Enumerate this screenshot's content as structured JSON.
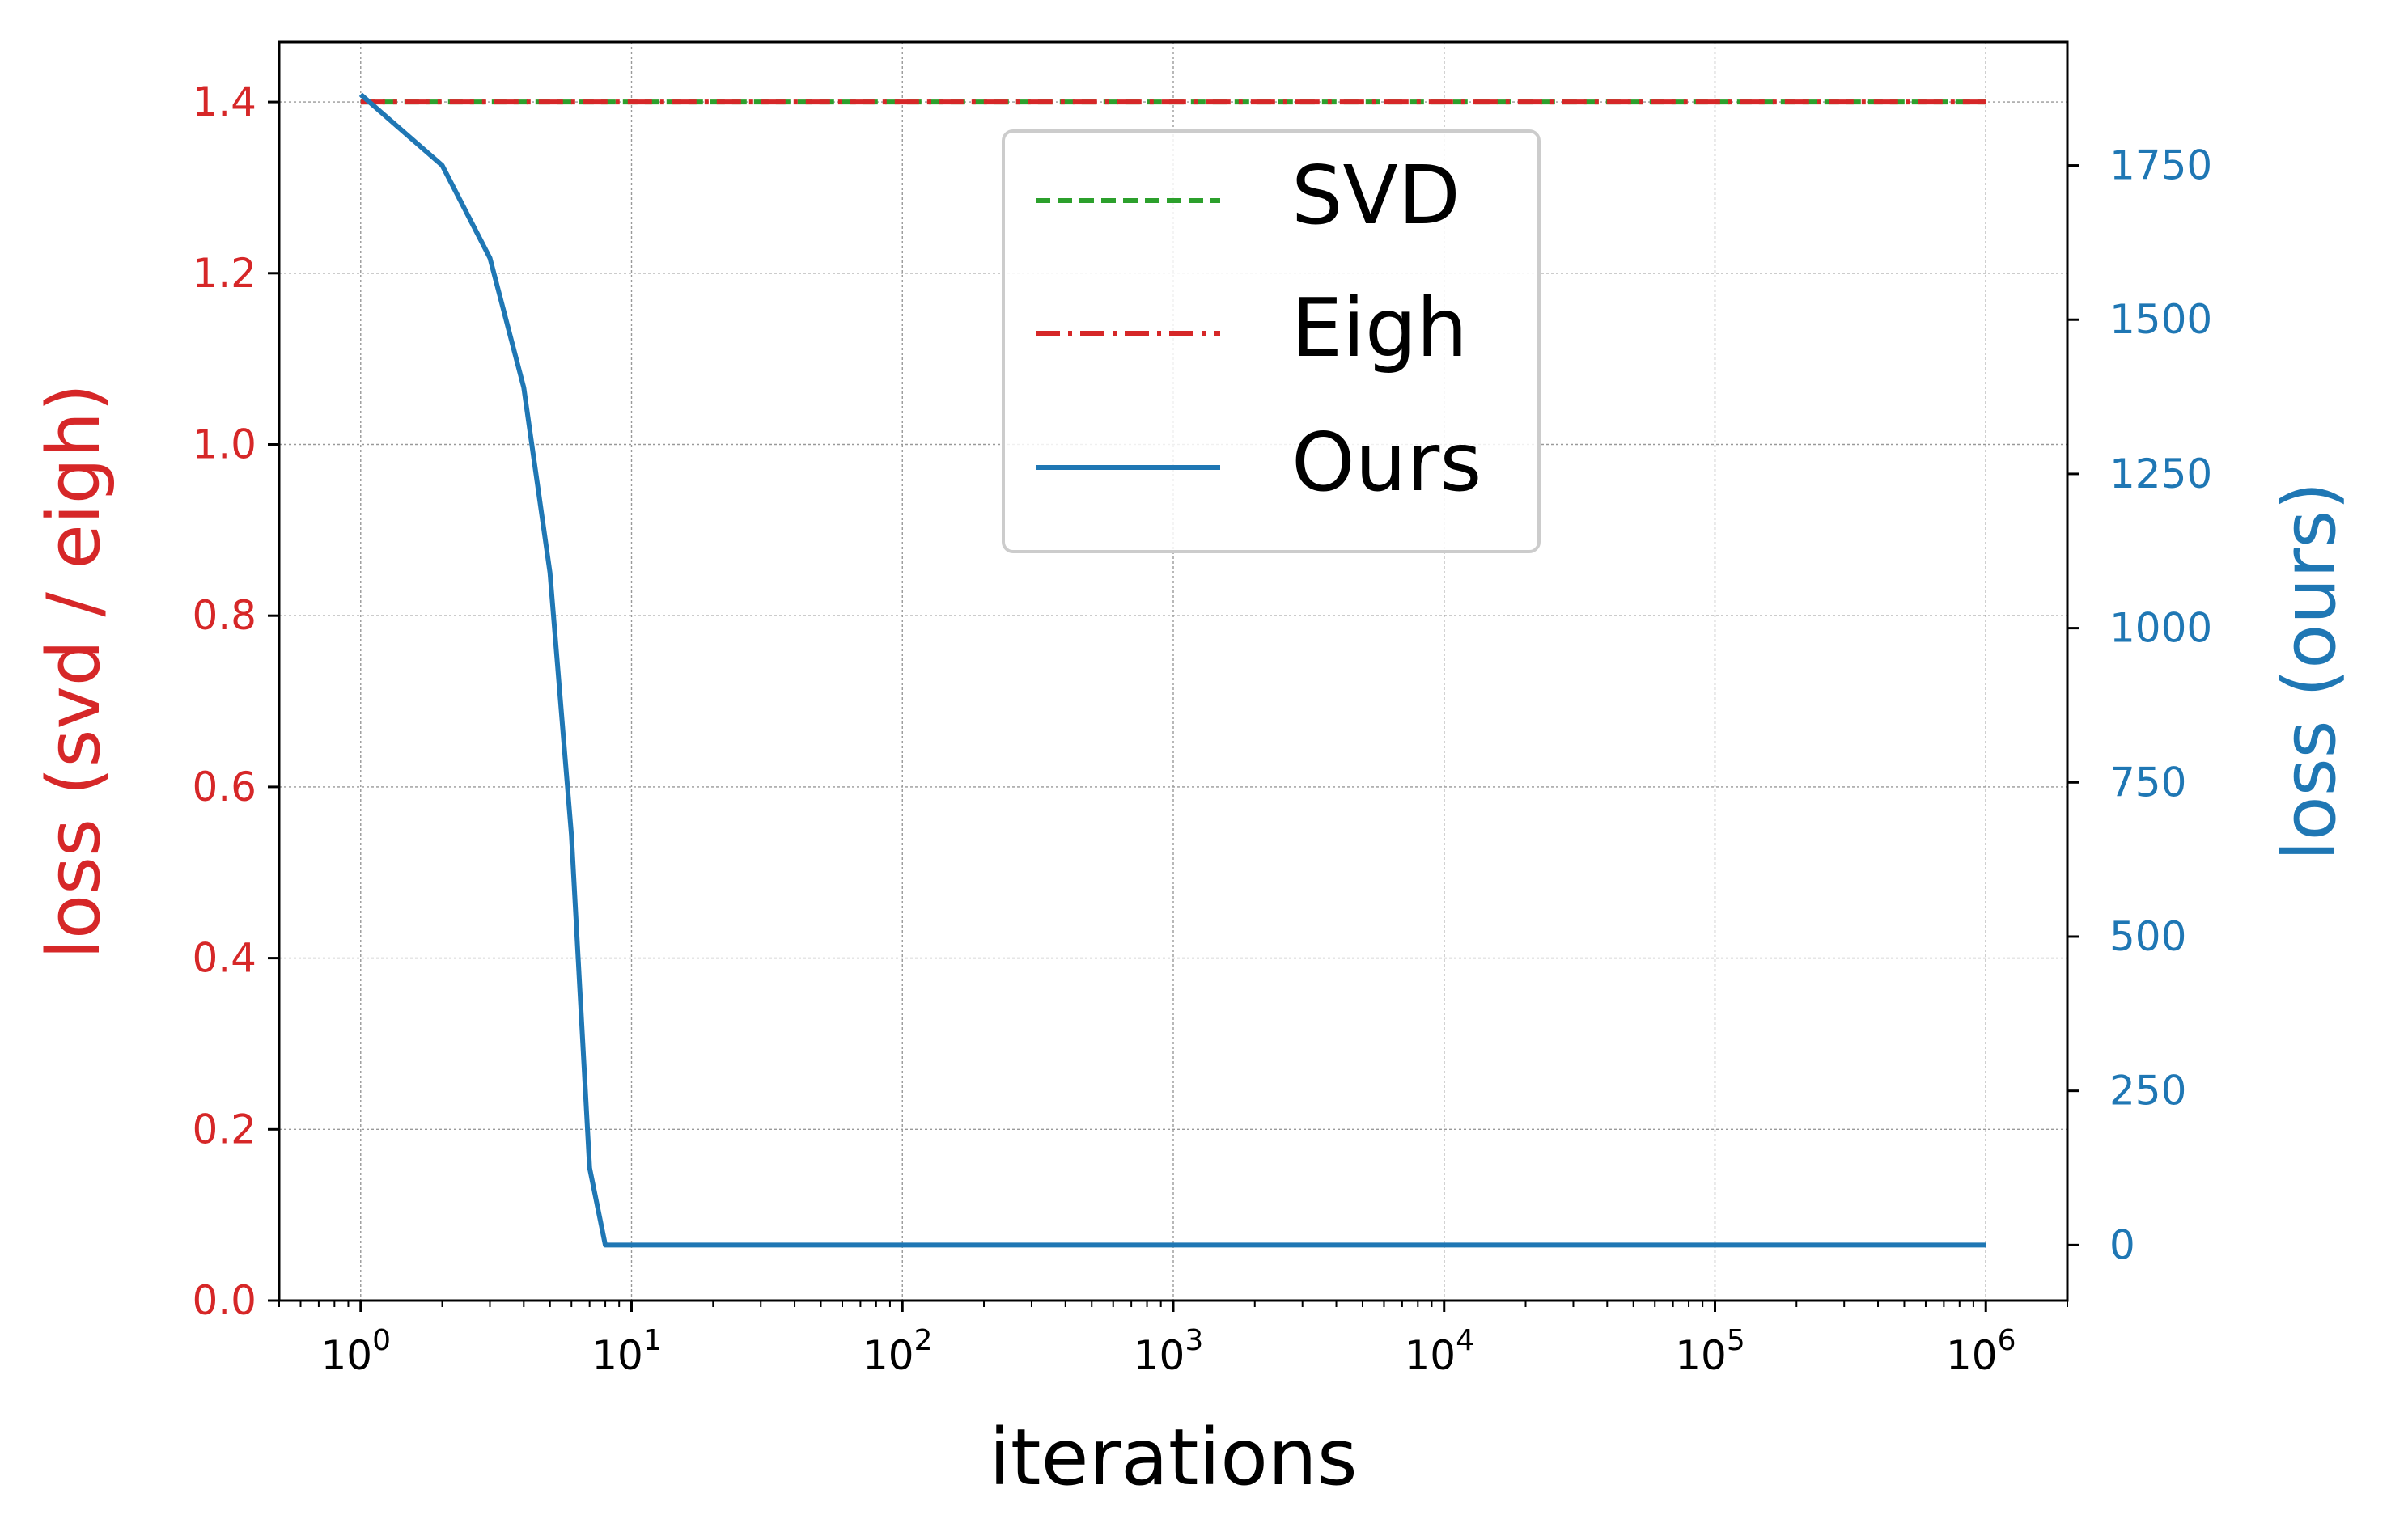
{
  "chart_data": {
    "type": "line",
    "title": "",
    "xlabel": "iterations",
    "ylabel_left": "loss (svd / eigh)",
    "ylabel_right": "loss (ours)",
    "x_scale": "log",
    "xlim": [
      0.5,
      2000000
    ],
    "ylim_left": [
      0.0,
      1.47
    ],
    "ylim_right": [
      -90,
      1950
    ],
    "x_ticks": [
      {
        "value": 1,
        "base": "10",
        "exp": "0"
      },
      {
        "value": 10,
        "base": "10",
        "exp": "1"
      },
      {
        "value": 100,
        "base": "10",
        "exp": "2"
      },
      {
        "value": 1000,
        "base": "10",
        "exp": "3"
      },
      {
        "value": 10000,
        "base": "10",
        "exp": "4"
      },
      {
        "value": 100000,
        "base": "10",
        "exp": "5"
      },
      {
        "value": 1000000,
        "base": "10",
        "exp": "6"
      }
    ],
    "y_left_ticks": [
      {
        "value": 0.0,
        "label": "0.0"
      },
      {
        "value": 0.2,
        "label": "0.2"
      },
      {
        "value": 0.4,
        "label": "0.4"
      },
      {
        "value": 0.6,
        "label": "0.6"
      },
      {
        "value": 0.8,
        "label": "0.8"
      },
      {
        "value": 1.0,
        "label": "1.0"
      },
      {
        "value": 1.2,
        "label": "1.2"
      },
      {
        "value": 1.4,
        "label": "1.4"
      }
    ],
    "y_right_ticks": [
      {
        "value": 0,
        "label": "0"
      },
      {
        "value": 250,
        "label": "250"
      },
      {
        "value": 500,
        "label": "500"
      },
      {
        "value": 750,
        "label": "750"
      },
      {
        "value": 1000,
        "label": "1000"
      },
      {
        "value": 1250,
        "label": "1250"
      },
      {
        "value": 1500,
        "label": "1500"
      },
      {
        "value": 1750,
        "label": "1750"
      }
    ],
    "grid": true,
    "legend_position": "top-center",
    "series": [
      {
        "name": "SVD",
        "axis": "left",
        "color": "#2ca02c",
        "style": "dashed",
        "x": [
          1,
          1000000
        ],
        "y": [
          1.4,
          1.4
        ]
      },
      {
        "name": "Eigh",
        "axis": "left",
        "color": "#d62728",
        "style": "dashdot",
        "x": [
          1,
          1000000
        ],
        "y": [
          1.4,
          1.4
        ]
      },
      {
        "name": "Ours",
        "axis": "right",
        "color": "#1f77b4",
        "style": "solid",
        "x": [
          1,
          2,
          3,
          4,
          5,
          6,
          7,
          8,
          1000000
        ],
        "y": [
          1865,
          1750,
          1600,
          1390,
          1090,
          665,
          125,
          0,
          0
        ]
      }
    ],
    "colors": {
      "left_axis": "#d62728",
      "right_axis": "#1f77b4",
      "text": "#000000",
      "grid": "#999999"
    }
  }
}
